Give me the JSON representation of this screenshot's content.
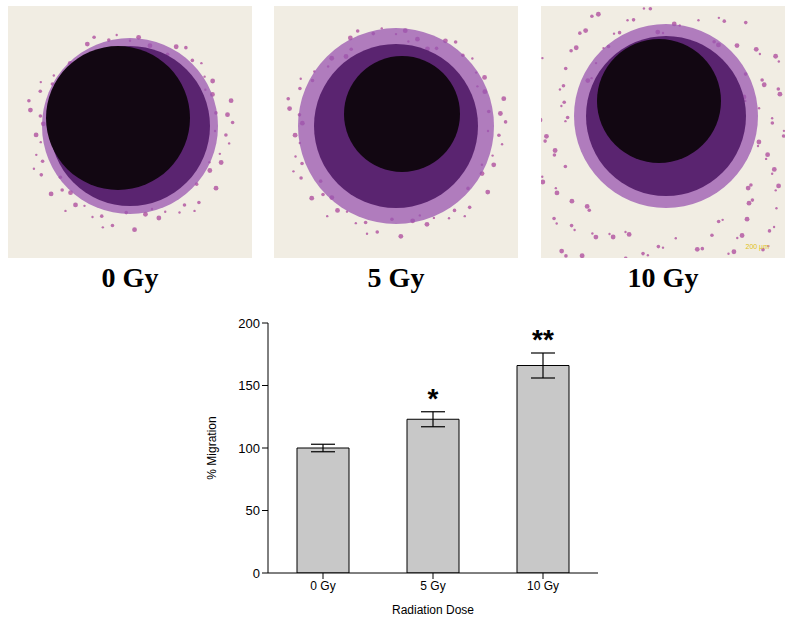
{
  "panels": {
    "labels": [
      "0 Gy",
      "5 Gy",
      "10 Gy"
    ],
    "scale_bar": "200 µm"
  },
  "chart_data": {
    "type": "bar",
    "categories": [
      "0 Gy",
      "5 Gy",
      "10 Gy"
    ],
    "values": [
      100,
      123,
      166
    ],
    "errors": [
      3,
      6,
      10
    ],
    "significance": [
      null,
      "*",
      "**"
    ],
    "color": "#c8c8c8",
    "x_label": "Radiation Dose",
    "y_label": "% Migration",
    "ylim": [
      0,
      200
    ],
    "yticks": [
      0,
      50,
      100,
      150,
      200
    ],
    "grid": false
  }
}
